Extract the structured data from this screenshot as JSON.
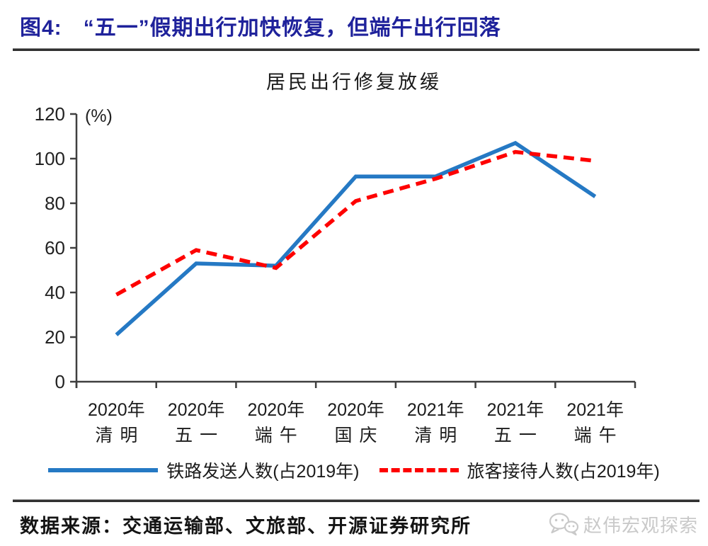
{
  "header": {
    "figure_label": "图4:",
    "title": "“五一”假期出行加快恢复，但端午出行回落"
  },
  "chart_data": {
    "type": "line",
    "title": "居民出行修复放缓",
    "unit_label": "(%)",
    "categories": [
      [
        "2020年",
        "清明"
      ],
      [
        "2020年",
        "五一"
      ],
      [
        "2020年",
        "端午"
      ],
      [
        "2020年",
        "国庆"
      ],
      [
        "2021年",
        "清明"
      ],
      [
        "2021年",
        "五一"
      ],
      [
        "2021年",
        "端午"
      ]
    ],
    "series": [
      {
        "name": "铁路发送人数(占2019年)",
        "color": "#2579c4",
        "style": "solid",
        "values": [
          21,
          53,
          52,
          92,
          92,
          107,
          83
        ]
      },
      {
        "name": "旅客接待人数(占2019年)",
        "color": "#fe0000",
        "style": "dashed",
        "values": [
          39,
          59,
          51,
          81,
          91,
          103,
          99
        ]
      }
    ],
    "y_ticks": [
      0,
      20,
      40,
      60,
      80,
      100,
      120
    ],
    "ylim": [
      0,
      120
    ],
    "grid": false,
    "legend_position": "bottom"
  },
  "footer": {
    "source": "数据来源：交通运输部、文旅部、开源证券研究所",
    "watermark": "赵伟宏观探索"
  }
}
